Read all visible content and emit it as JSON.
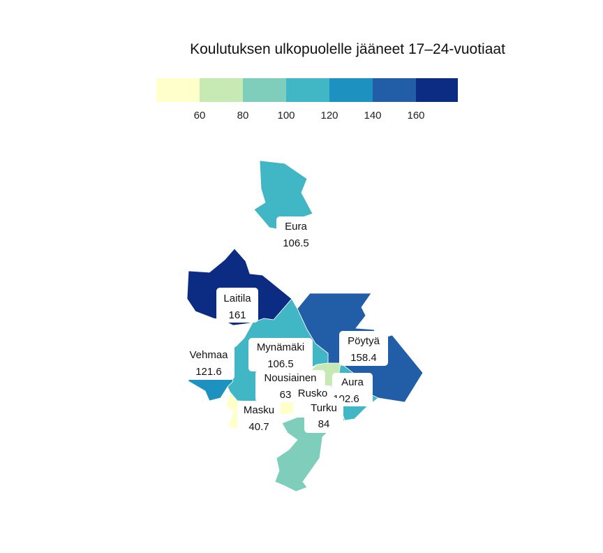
{
  "map": {
    "title": "Koulutuksen ulkopuolelle jääneet 17–24-vuotiaat",
    "legend": {
      "colors": [
        "#ffffcc",
        "#c7e9b4",
        "#7fcdbb",
        "#41b6c4",
        "#1d91c0",
        "#225ea8",
        "#0c2c84"
      ],
      "ticks": [
        "60",
        "80",
        "100",
        "120",
        "140",
        "160"
      ]
    },
    "regions": [
      {
        "name": "Eura",
        "value": "106.5",
        "color": "#41b6c4"
      },
      {
        "name": "Laitila",
        "value": "161",
        "color": "#0c2c84"
      },
      {
        "name": "Pöytyä",
        "value": "158.4",
        "color": "#225ea8"
      },
      {
        "name": "Vehmaa",
        "value": "121.6",
        "color": "#1d91c0"
      },
      {
        "name": "Mynämäki",
        "value": "106.5",
        "color": "#41b6c4"
      },
      {
        "name": "Nousiainen",
        "value": "63",
        "color": "#c7e9b4"
      },
      {
        "name": "Aura",
        "value": "102.6",
        "color": "#41b6c4"
      },
      {
        "name": "Rusko",
        "value": "",
        "color": "#c7e9b4"
      },
      {
        "name": "Masku",
        "value": "40.7",
        "color": "#ffffcc"
      },
      {
        "name": "Turku",
        "value": "84",
        "color": "#7fcdbb"
      }
    ]
  }
}
